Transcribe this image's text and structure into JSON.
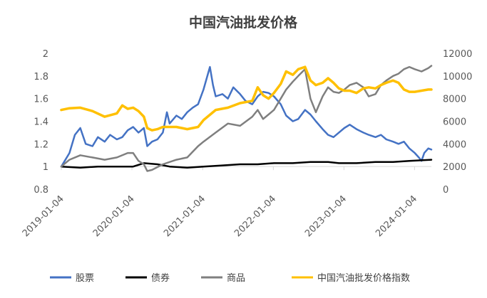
{
  "chart_data": {
    "type": "line",
    "title": "中国汽油批发价格",
    "x_ticks": [
      "2019-01-04",
      "2020-01-04",
      "2021-01-04",
      "2022-01-04",
      "2023-01-04",
      "2024-01-04"
    ],
    "x_range": [
      "2019-01-04",
      "2024-03-31"
    ],
    "y_left": {
      "min": 0.8,
      "max": 2,
      "ticks": [
        "0.8",
        "1",
        "1.2",
        "1.4",
        "1.6",
        "1.8",
        "2"
      ]
    },
    "y_right": {
      "min": 0,
      "max": 12000,
      "ticks": [
        "0",
        "2000",
        "4000",
        "6000",
        "8000",
        "10000",
        "12000"
      ]
    },
    "grid": false,
    "legend_position": "bottom",
    "series": [
      {
        "name": "股票",
        "axis": "left",
        "color": "#4472C4",
        "points": [
          [
            "2019-01-04",
            1.0
          ],
          [
            "2019-02-15",
            1.12
          ],
          [
            "2019-03-15",
            1.28
          ],
          [
            "2019-04-12",
            1.34
          ],
          [
            "2019-05-10",
            1.2
          ],
          [
            "2019-06-14",
            1.18
          ],
          [
            "2019-07-12",
            1.26
          ],
          [
            "2019-08-16",
            1.22
          ],
          [
            "2019-09-13",
            1.28
          ],
          [
            "2019-10-18",
            1.24
          ],
          [
            "2019-11-15",
            1.26
          ],
          [
            "2019-12-13",
            1.32
          ],
          [
            "2020-01-10",
            1.35
          ],
          [
            "2020-02-07",
            1.3
          ],
          [
            "2020-03-06",
            1.34
          ],
          [
            "2020-03-23",
            1.18
          ],
          [
            "2020-04-17",
            1.22
          ],
          [
            "2020-05-15",
            1.24
          ],
          [
            "2020-06-12",
            1.3
          ],
          [
            "2020-07-03",
            1.48
          ],
          [
            "2020-07-17",
            1.38
          ],
          [
            "2020-08-21",
            1.45
          ],
          [
            "2020-09-18",
            1.42
          ],
          [
            "2020-10-16",
            1.48
          ],
          [
            "2020-11-13",
            1.52
          ],
          [
            "2020-12-11",
            1.55
          ],
          [
            "2021-01-08",
            1.68
          ],
          [
            "2021-02-10",
            1.88
          ],
          [
            "2021-02-26",
            1.72
          ],
          [
            "2021-03-12",
            1.62
          ],
          [
            "2021-04-16",
            1.64
          ],
          [
            "2021-05-14",
            1.6
          ],
          [
            "2021-06-11",
            1.7
          ],
          [
            "2021-07-16",
            1.64
          ],
          [
            "2021-08-13",
            1.58
          ],
          [
            "2021-09-17",
            1.55
          ],
          [
            "2021-10-15",
            1.62
          ],
          [
            "2021-11-12",
            1.66
          ],
          [
            "2021-12-10",
            1.65
          ],
          [
            "2022-01-07",
            1.62
          ],
          [
            "2022-02-11",
            1.55
          ],
          [
            "2022-03-11",
            1.45
          ],
          [
            "2022-04-15",
            1.4
          ],
          [
            "2022-05-13",
            1.42
          ],
          [
            "2022-06-17",
            1.5
          ],
          [
            "2022-07-15",
            1.46
          ],
          [
            "2022-08-12",
            1.4
          ],
          [
            "2022-09-16",
            1.33
          ],
          [
            "2022-10-14",
            1.28
          ],
          [
            "2022-11-11",
            1.26
          ],
          [
            "2022-12-09",
            1.3
          ],
          [
            "2023-01-06",
            1.34
          ],
          [
            "2023-02-03",
            1.37
          ],
          [
            "2023-03-10",
            1.33
          ],
          [
            "2023-04-14",
            1.3
          ],
          [
            "2023-05-12",
            1.28
          ],
          [
            "2023-06-16",
            1.26
          ],
          [
            "2023-07-14",
            1.28
          ],
          [
            "2023-08-11",
            1.24
          ],
          [
            "2023-09-15",
            1.22
          ],
          [
            "2023-10-13",
            1.2
          ],
          [
            "2023-11-10",
            1.22
          ],
          [
            "2023-12-08",
            1.16
          ],
          [
            "2024-01-05",
            1.12
          ],
          [
            "2024-01-26",
            1.08
          ],
          [
            "2024-02-09",
            1.05
          ],
          [
            "2024-02-23",
            1.12
          ],
          [
            "2024-03-15",
            1.16
          ],
          [
            "2024-03-31",
            1.15
          ]
        ]
      },
      {
        "name": "债券",
        "axis": "left",
        "color": "#000000",
        "points": [
          [
            "2019-01-04",
            1.0
          ],
          [
            "2019-04-12",
            0.99
          ],
          [
            "2019-07-12",
            1.0
          ],
          [
            "2019-10-18",
            1.0
          ],
          [
            "2020-01-10",
            1.0
          ],
          [
            "2020-03-06",
            1.03
          ],
          [
            "2020-05-15",
            1.02
          ],
          [
            "2020-07-17",
            1.0
          ],
          [
            "2020-10-16",
            0.99
          ],
          [
            "2021-01-08",
            1.0
          ],
          [
            "2021-04-16",
            1.01
          ],
          [
            "2021-07-16",
            1.02
          ],
          [
            "2021-10-15",
            1.02
          ],
          [
            "2022-01-07",
            1.03
          ],
          [
            "2022-04-15",
            1.03
          ],
          [
            "2022-07-15",
            1.04
          ],
          [
            "2022-10-14",
            1.04
          ],
          [
            "2022-12-09",
            1.03
          ],
          [
            "2023-03-10",
            1.03
          ],
          [
            "2023-06-16",
            1.04
          ],
          [
            "2023-09-15",
            1.04
          ],
          [
            "2023-12-08",
            1.05
          ],
          [
            "2024-03-31",
            1.06
          ]
        ]
      },
      {
        "name": "商品",
        "axis": "left",
        "color": "#7F7F7F",
        "points": [
          [
            "2019-01-04",
            1.0
          ],
          [
            "2019-02-15",
            1.06
          ],
          [
            "2019-04-12",
            1.1
          ],
          [
            "2019-06-14",
            1.08
          ],
          [
            "2019-08-16",
            1.06
          ],
          [
            "2019-10-18",
            1.08
          ],
          [
            "2019-12-13",
            1.12
          ],
          [
            "2020-01-10",
            1.12
          ],
          [
            "2020-02-07",
            1.05
          ],
          [
            "2020-03-06",
            1.02
          ],
          [
            "2020-03-23",
            0.96
          ],
          [
            "2020-04-17",
            0.97
          ],
          [
            "2020-06-12",
            1.02
          ],
          [
            "2020-08-21",
            1.06
          ],
          [
            "2020-10-16",
            1.08
          ],
          [
            "2020-12-11",
            1.18
          ],
          [
            "2021-01-08",
            1.22
          ],
          [
            "2021-03-12",
            1.3
          ],
          [
            "2021-05-14",
            1.38
          ],
          [
            "2021-07-16",
            1.36
          ],
          [
            "2021-09-17",
            1.44
          ],
          [
            "2021-10-15",
            1.5
          ],
          [
            "2021-11-12",
            1.42
          ],
          [
            "2021-12-10",
            1.46
          ],
          [
            "2022-01-07",
            1.5
          ],
          [
            "2022-02-11",
            1.6
          ],
          [
            "2022-03-11",
            1.68
          ],
          [
            "2022-04-15",
            1.75
          ],
          [
            "2022-05-13",
            1.8
          ],
          [
            "2022-06-17",
            1.86
          ],
          [
            "2022-07-15",
            1.6
          ],
          [
            "2022-08-12",
            1.48
          ],
          [
            "2022-09-16",
            1.62
          ],
          [
            "2022-10-14",
            1.7
          ],
          [
            "2022-11-11",
            1.66
          ],
          [
            "2022-12-09",
            1.65
          ],
          [
            "2023-01-06",
            1.68
          ],
          [
            "2023-02-03",
            1.72
          ],
          [
            "2023-03-10",
            1.74
          ],
          [
            "2023-04-14",
            1.7
          ],
          [
            "2023-05-12",
            1.62
          ],
          [
            "2023-06-16",
            1.64
          ],
          [
            "2023-07-14",
            1.72
          ],
          [
            "2023-08-11",
            1.76
          ],
          [
            "2023-09-15",
            1.8
          ],
          [
            "2023-10-13",
            1.82
          ],
          [
            "2023-11-10",
            1.86
          ],
          [
            "2023-12-08",
            1.88
          ],
          [
            "2024-01-05",
            1.86
          ],
          [
            "2024-02-09",
            1.84
          ],
          [
            "2024-03-15",
            1.87
          ],
          [
            "2024-03-31",
            1.89
          ]
        ]
      },
      {
        "name": "中国汽油批发价格指数",
        "axis": "right",
        "color": "#FFC000",
        "points": [
          [
            "2019-01-04",
            7000
          ],
          [
            "2019-02-15",
            7150
          ],
          [
            "2019-04-12",
            7200
          ],
          [
            "2019-06-14",
            6900
          ],
          [
            "2019-08-16",
            6400
          ],
          [
            "2019-10-18",
            6700
          ],
          [
            "2019-11-15",
            7400
          ],
          [
            "2019-12-13",
            7100
          ],
          [
            "2020-01-10",
            7200
          ],
          [
            "2020-02-07",
            6900
          ],
          [
            "2020-03-06",
            6400
          ],
          [
            "2020-03-23",
            5400
          ],
          [
            "2020-04-17",
            5200
          ],
          [
            "2020-05-15",
            5300
          ],
          [
            "2020-06-12",
            5500
          ],
          [
            "2020-08-21",
            5500
          ],
          [
            "2020-10-16",
            5300
          ],
          [
            "2020-12-11",
            5500
          ],
          [
            "2021-01-08",
            6100
          ],
          [
            "2021-03-12",
            7000
          ],
          [
            "2021-05-14",
            7200
          ],
          [
            "2021-07-16",
            7600
          ],
          [
            "2021-09-17",
            7800
          ],
          [
            "2021-10-15",
            9000
          ],
          [
            "2021-11-12",
            8300
          ],
          [
            "2021-12-10",
            8000
          ],
          [
            "2022-01-07",
            8500
          ],
          [
            "2022-02-11",
            9300
          ],
          [
            "2022-03-11",
            10400
          ],
          [
            "2022-04-15",
            10100
          ],
          [
            "2022-05-13",
            10600
          ],
          [
            "2022-06-17",
            10800
          ],
          [
            "2022-07-15",
            9600
          ],
          [
            "2022-08-12",
            9200
          ],
          [
            "2022-09-16",
            9400
          ],
          [
            "2022-10-14",
            9800
          ],
          [
            "2022-11-11",
            9400
          ],
          [
            "2022-12-09",
            8900
          ],
          [
            "2023-01-06",
            8700
          ],
          [
            "2023-02-03",
            8700
          ],
          [
            "2023-03-10",
            8500
          ],
          [
            "2023-04-14",
            8900
          ],
          [
            "2023-05-12",
            9000
          ],
          [
            "2023-06-16",
            8900
          ],
          [
            "2023-07-14",
            9200
          ],
          [
            "2023-08-11",
            9400
          ],
          [
            "2023-09-15",
            9600
          ],
          [
            "2023-10-13",
            9400
          ],
          [
            "2023-11-10",
            8800
          ],
          [
            "2023-12-08",
            8600
          ],
          [
            "2024-01-05",
            8600
          ],
          [
            "2024-02-09",
            8700
          ],
          [
            "2024-03-15",
            8800
          ],
          [
            "2024-03-31",
            8800
          ]
        ]
      }
    ]
  }
}
